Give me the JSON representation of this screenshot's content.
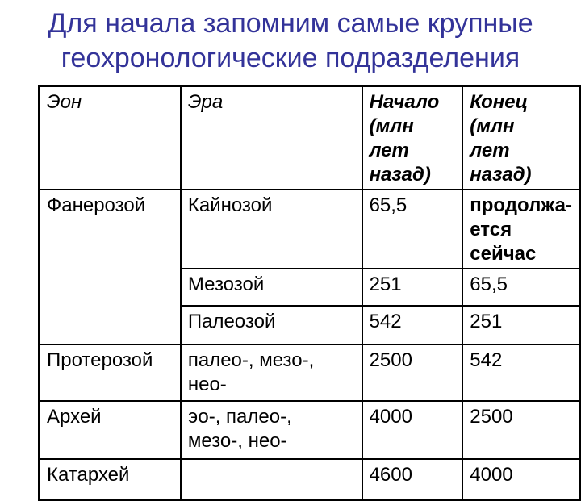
{
  "slide": {
    "title": "Для начала запомним самые крупные\nгеохронологические подразделения",
    "colors": {
      "title_blue": "#333399",
      "accent_red": "#cc0000",
      "table_border": "#000000",
      "background": "#ffffff"
    }
  },
  "table": {
    "headers": {
      "eon": "Эон",
      "era": "Эра",
      "start": "Начало (млн\nлет назад)",
      "end": "Конец (млн\nлет назад)"
    },
    "rows": [
      {
        "eon": "Фанерозой",
        "era": "Кайнозой",
        "start": "65,5",
        "end": "продолжа-\nется сейчас"
      },
      {
        "era": "Мезозой",
        "start": "251",
        "end": "65,5"
      },
      {
        "era": "Палеозой",
        "start": "542",
        "end": "251"
      },
      {
        "eon": "Протерозой",
        "era": "палео-, мезо-,\nнео-",
        "start": "2500",
        "end": "542"
      },
      {
        "eon": "Архей",
        "era": "эо-, палео-,\nмезо-, нео-",
        "start": "4000",
        "end": "2500"
      },
      {
        "eon": "Катархей",
        "era": "",
        "start": "4600",
        "end": "4000"
      }
    ]
  }
}
